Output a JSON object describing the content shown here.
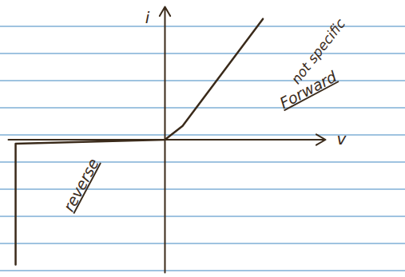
{
  "chart_data": {
    "type": "line",
    "x_label": "v",
    "y_label": "i",
    "x": [
      -18.6,
      -18.6,
      0,
      2.2,
      12.2
    ],
    "values": [
      -15.5,
      -0.5,
      0,
      1.7,
      15
    ],
    "xlim": [
      -19.5,
      20
    ],
    "ylim": [
      -16.5,
      16.5
    ],
    "xticks": [],
    "yticks": [],
    "tick_labels": false,
    "grid": false,
    "color": "#3a2a1a",
    "annotations": [
      "not specific",
      "Forward",
      "reverse"
    ]
  }
}
